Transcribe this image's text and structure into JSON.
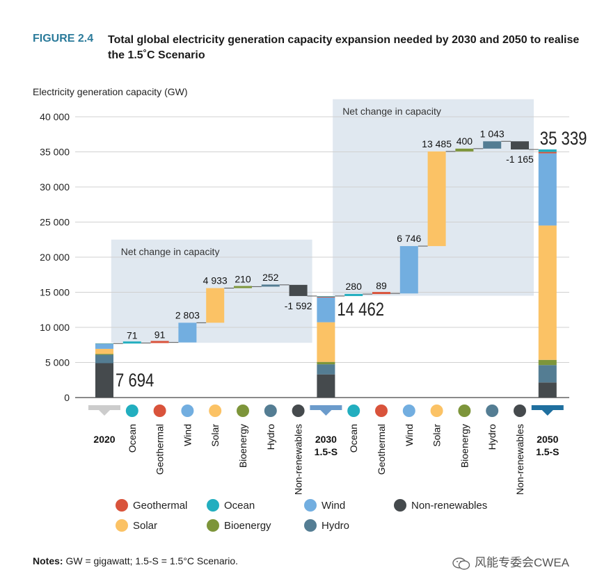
{
  "figure": {
    "label": "FIGURE 2.4",
    "title": "Total global electricity generation capacity expansion needed by 2030 and 2050 to realise the 1.5˚C Scenario"
  },
  "notes": {
    "bold": "Notes:",
    "text": " GW = gigawatt; 1.5-S = 1.5°C Scenario."
  },
  "watermark": "风能专委会CWEA",
  "colors": {
    "geothermal": "#d9533b",
    "ocean": "#22aebf",
    "wind": "#72aee0",
    "solar": "#fbc265",
    "bioenergy": "#7d953a",
    "hydro": "#547d93",
    "nonrenewables": "#454a4d",
    "panel": "#e0e8f0",
    "total2020": "#cccccc",
    "total2030": "#6b9bcb",
    "total2050": "#1f6f9f"
  },
  "chart_data": {
    "type": "bar",
    "subtype": "waterfall",
    "ylabel": "Electricity generation capacity (GW)",
    "ylim": [
      0,
      40000
    ],
    "yticks": [
      0,
      5000,
      10000,
      15000,
      20000,
      25000,
      30000,
      35000,
      40000
    ],
    "ytick_labels": [
      "0",
      "5 000",
      "10 000",
      "15 000",
      "20 000",
      "25 000",
      "30 000",
      "35 000",
      "40 000"
    ],
    "grid": true,
    "panels": [
      {
        "label": "Net change in capacity",
        "from": 1,
        "to": 7,
        "top": 22500,
        "bottom": 7800
      },
      {
        "label": "Net change in capacity",
        "from": 9,
        "to": 15,
        "top": 42500,
        "bottom": 14500
      }
    ],
    "categories": [
      {
        "label": "2020",
        "kind": "total",
        "color_key": "total2020",
        "rotated": false
      },
      {
        "label": "Ocean",
        "kind": "change",
        "color_key": "ocean",
        "rotated": true
      },
      {
        "label": "Geothermal",
        "kind": "change",
        "color_key": "geothermal",
        "rotated": true
      },
      {
        "label": "Wind",
        "kind": "change",
        "color_key": "wind",
        "rotated": true
      },
      {
        "label": "Solar",
        "kind": "change",
        "color_key": "solar",
        "rotated": true
      },
      {
        "label": "Bioenergy",
        "kind": "change",
        "color_key": "bioenergy",
        "rotated": true
      },
      {
        "label": "Hydro",
        "kind": "change",
        "color_key": "hydro",
        "rotated": true
      },
      {
        "label": "Non-renewables",
        "kind": "change",
        "color_key": "nonrenewables",
        "rotated": true
      },
      {
        "label": "2030",
        "sublabel": "1.5-S",
        "kind": "total",
        "color_key": "total2030",
        "rotated": false
      },
      {
        "label": "Ocean",
        "kind": "change",
        "color_key": "ocean",
        "rotated": true
      },
      {
        "label": "Geothermal",
        "kind": "change",
        "color_key": "geothermal",
        "rotated": true
      },
      {
        "label": "Wind",
        "kind": "change",
        "color_key": "wind",
        "rotated": true
      },
      {
        "label": "Solar",
        "kind": "change",
        "color_key": "solar",
        "rotated": true
      },
      {
        "label": "Bioenergy",
        "kind": "change",
        "color_key": "bioenergy",
        "rotated": true
      },
      {
        "label": "Hydro",
        "kind": "change",
        "color_key": "hydro",
        "rotated": true
      },
      {
        "label": "Non-renewables",
        "kind": "change",
        "color_key": "nonrenewables",
        "rotated": true
      },
      {
        "label": "2050",
        "sublabel": "1.5-S",
        "kind": "total",
        "color_key": "total2050",
        "rotated": false
      }
    ],
    "totals": [
      {
        "index": 0,
        "value": 7694,
        "label": "7 694",
        "stack": [
          {
            "key": "nonrenewables",
            "value": 4900
          },
          {
            "key": "hydro",
            "value": 1190
          },
          {
            "key": "bioenergy",
            "value": 130
          },
          {
            "key": "solar",
            "value": 720
          },
          {
            "key": "wind",
            "value": 730
          },
          {
            "key": "geothermal",
            "value": 16
          },
          {
            "key": "ocean",
            "value": 8
          }
        ]
      },
      {
        "index": 8,
        "value": 14462,
        "label": "14 462",
        "stack": [
          {
            "key": "nonrenewables",
            "value": 3300
          },
          {
            "key": "hydro",
            "value": 1440
          },
          {
            "key": "bioenergy",
            "value": 340
          },
          {
            "key": "solar",
            "value": 5650
          },
          {
            "key": "wind",
            "value": 3530
          },
          {
            "key": "geothermal",
            "value": 110
          },
          {
            "key": "ocean",
            "value": 80
          }
        ]
      },
      {
        "index": 16,
        "value": 35339,
        "label": "35 339",
        "stack": [
          {
            "key": "nonrenewables",
            "value": 2150
          },
          {
            "key": "hydro",
            "value": 2480
          },
          {
            "key": "bioenergy",
            "value": 740
          },
          {
            "key": "solar",
            "value": 19140
          },
          {
            "key": "wind",
            "value": 10280
          },
          {
            "key": "geothermal",
            "value": 200
          },
          {
            "key": "ocean",
            "value": 360
          }
        ]
      }
    ],
    "changes": [
      {
        "index": 1,
        "value": 71,
        "label": "71"
      },
      {
        "index": 2,
        "value": 91,
        "label": "91"
      },
      {
        "index": 3,
        "value": 2803,
        "label": "2 803"
      },
      {
        "index": 4,
        "value": 4933,
        "label": "4 933"
      },
      {
        "index": 5,
        "value": 210,
        "label": "210"
      },
      {
        "index": 6,
        "value": 252,
        "label": "252"
      },
      {
        "index": 7,
        "value": -1592,
        "label": "-1 592"
      },
      {
        "index": 9,
        "value": 280,
        "label": "280"
      },
      {
        "index": 10,
        "value": 89,
        "label": "89"
      },
      {
        "index": 11,
        "value": 6746,
        "label": "6 746"
      },
      {
        "index": 12,
        "value": 13485,
        "label": "13 485"
      },
      {
        "index": 13,
        "value": 400,
        "label": "400"
      },
      {
        "index": 14,
        "value": 1043,
        "label": "1 043"
      },
      {
        "index": 15,
        "value": -1165,
        "label": "-1 165"
      }
    ],
    "legend": [
      {
        "key": "geothermal",
        "label": "Geothermal"
      },
      {
        "key": "ocean",
        "label": "Ocean"
      },
      {
        "key": "wind",
        "label": "Wind"
      },
      {
        "key": "nonrenewables",
        "label": "Non-renewables"
      },
      {
        "key": "solar",
        "label": "Solar"
      },
      {
        "key": "bioenergy",
        "label": "Bioenergy"
      },
      {
        "key": "hydro",
        "label": "Hydro"
      }
    ],
    "legend_position": "bottom"
  }
}
